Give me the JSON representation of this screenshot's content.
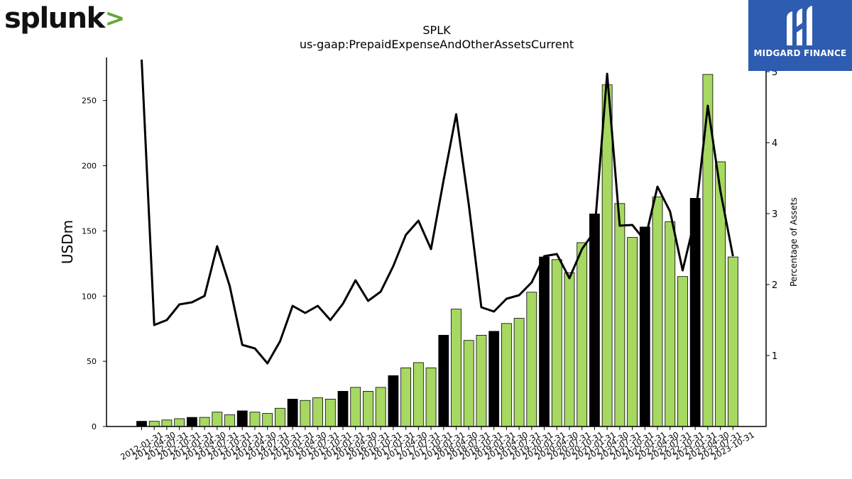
{
  "brand": {
    "left_logo_text": "splunk",
    "left_logo_mark": ">",
    "right_logo_text": "MIDGARD FINANCE"
  },
  "colors": {
    "bar_highlight": "#000000",
    "bar_normal": "#a6d862",
    "line": "#000000",
    "right_logo_bg": "#2d5cb0"
  },
  "chart_data": {
    "type": "bar",
    "title": "SPLK",
    "subtitle": "us-gaap:PrepaidExpenseAndOtherAssetsCurrent",
    "ylabel": "USDm",
    "y2label": "Percentage of Assets",
    "ylim": [
      0,
      283
    ],
    "y2lim": [
      0,
      5.2
    ],
    "yticks": [
      0,
      50,
      100,
      150,
      200,
      250
    ],
    "y2ticks": [
      1,
      2,
      3,
      4,
      5
    ],
    "categories": [
      "2012-01-31",
      "2012-04-30",
      "2012-07-31",
      "2012-10-31",
      "2013-01-31",
      "2013-04-30",
      "2013-07-31",
      "2013-10-31",
      "2014-01-31",
      "2014-04-30",
      "2014-07-31",
      "2014-10-31",
      "2015-01-31",
      "2015-04-30",
      "2015-07-31",
      "2015-10-31",
      "2016-01-31",
      "2016-04-30",
      "2016-07-31",
      "2016-10-31",
      "2017-01-31",
      "2017-04-30",
      "2017-07-31",
      "2017-10-31",
      "2018-01-31",
      "2018-04-30",
      "2018-07-31",
      "2018-10-31",
      "2019-01-31",
      "2019-04-30",
      "2019-07-31",
      "2019-10-31",
      "2020-01-31",
      "2020-04-30",
      "2020-07-31",
      "2020-10-31",
      "2021-01-31",
      "2021-04-30",
      "2021-07-31",
      "2021-10-31",
      "2022-01-31",
      "2022-04-30",
      "2022-07-31",
      "2022-10-31",
      "2023-01-31",
      "2023-04-30",
      "2023-07-31",
      "2023-10-31"
    ],
    "series": [
      {
        "type": "bar",
        "values": [
          4,
          4,
          5,
          6,
          7,
          7,
          11,
          9,
          12,
          11,
          10,
          14,
          21,
          20,
          22,
          21,
          27,
          30,
          27,
          30,
          39,
          45,
          49,
          45,
          70,
          90,
          66,
          70,
          73,
          79,
          83,
          103,
          130,
          128,
          118,
          141,
          163,
          262,
          171,
          145,
          153,
          176,
          157,
          115,
          175,
          270,
          203,
          130
        ],
        "highlight": [
          true,
          false,
          false,
          false,
          true,
          false,
          false,
          false,
          true,
          false,
          false,
          false,
          true,
          false,
          false,
          false,
          true,
          false,
          false,
          false,
          true,
          false,
          false,
          false,
          true,
          false,
          false,
          false,
          true,
          false,
          false,
          false,
          true,
          false,
          false,
          false,
          true,
          false,
          false,
          false,
          true,
          false,
          false,
          false,
          true,
          false,
          false,
          false
        ]
      },
      {
        "type": "line",
        "axis": "right",
        "values": [
          5.17,
          1.43,
          1.5,
          1.72,
          1.75,
          1.84,
          2.54,
          1.98,
          1.15,
          1.1,
          0.89,
          1.2,
          1.7,
          1.6,
          1.7,
          1.5,
          1.73,
          2.06,
          1.77,
          1.9,
          2.26,
          2.7,
          2.9,
          2.5,
          3.47,
          4.4,
          3.13,
          1.68,
          1.62,
          1.8,
          1.85,
          2.03,
          2.4,
          2.43,
          2.09,
          2.5,
          2.75,
          4.97,
          2.83,
          2.84,
          2.62,
          3.38,
          3.03,
          2.2,
          2.94,
          4.52,
          3.32,
          2.4
        ]
      }
    ]
  }
}
